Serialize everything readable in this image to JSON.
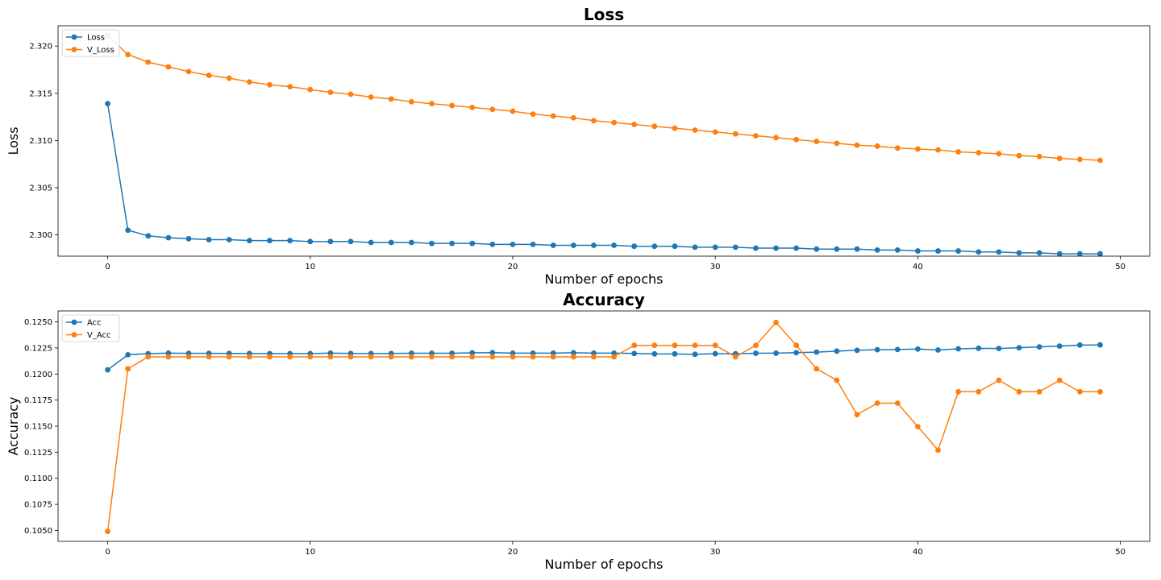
{
  "chart_data": [
    {
      "type": "line",
      "title": "Loss",
      "xlabel": "Number of epochs",
      "ylabel": "Loss",
      "xlim": [
        -2.45,
        51.45
      ],
      "ylim": [
        2.29775,
        2.32215
      ],
      "xticks": [
        0,
        10,
        20,
        30,
        40,
        50
      ],
      "yticks": [
        2.3,
        2.305,
        2.31,
        2.315,
        2.32
      ],
      "ytick_decimals": 3,
      "legend_position": "top-left",
      "x": [
        0,
        1,
        2,
        3,
        4,
        5,
        6,
        7,
        8,
        9,
        10,
        11,
        12,
        13,
        14,
        15,
        16,
        17,
        18,
        19,
        20,
        21,
        22,
        23,
        24,
        25,
        26,
        27,
        28,
        29,
        30,
        31,
        32,
        33,
        34,
        35,
        36,
        37,
        38,
        39,
        40,
        41,
        42,
        43,
        44,
        45,
        46,
        47,
        48,
        49
      ],
      "series": [
        {
          "name": "Loss",
          "color": "#1f77b4",
          "values": [
            2.3139,
            2.3005,
            2.2999,
            2.2997,
            2.2996,
            2.2995,
            2.2995,
            2.2994,
            2.2994,
            2.2994,
            2.2993,
            2.2993,
            2.2993,
            2.2992,
            2.2992,
            2.2992,
            2.2991,
            2.2991,
            2.2991,
            2.299,
            2.299,
            2.299,
            2.2989,
            2.2989,
            2.2989,
            2.2989,
            2.2988,
            2.2988,
            2.2988,
            2.2987,
            2.2987,
            2.2987,
            2.2986,
            2.2986,
            2.2986,
            2.2985,
            2.2985,
            2.2985,
            2.2984,
            2.2984,
            2.2983,
            2.2983,
            2.2983,
            2.2982,
            2.2982,
            2.2981,
            2.2981,
            2.298,
            2.298,
            2.298
          ]
        },
        {
          "name": "V_Loss",
          "color": "#ff7f0e",
          "values": [
            2.3211,
            2.3191,
            2.3183,
            2.3178,
            2.3173,
            2.3169,
            2.3166,
            2.3162,
            2.3159,
            2.3157,
            2.3154,
            2.3151,
            2.3149,
            2.3146,
            2.3144,
            2.3141,
            2.3139,
            2.3137,
            2.3135,
            2.3133,
            2.3131,
            2.3128,
            2.3126,
            2.3124,
            2.3121,
            2.3119,
            2.3117,
            2.3115,
            2.3113,
            2.3111,
            2.3109,
            2.3107,
            2.3105,
            2.3103,
            2.3101,
            2.3099,
            2.3097,
            2.3095,
            2.3094,
            2.3092,
            2.3091,
            2.309,
            2.3088,
            2.3087,
            2.3086,
            2.3084,
            2.3083,
            2.3081,
            2.308,
            2.3079
          ]
        }
      ]
    },
    {
      "type": "line",
      "title": "Accuracy",
      "xlabel": "Number of epochs",
      "ylabel": "Accuracy",
      "xlim": [
        -2.45,
        51.45
      ],
      "ylim": [
        0.10395,
        0.12605
      ],
      "xticks": [
        0,
        10,
        20,
        30,
        40,
        50
      ],
      "yticks": [
        0.105,
        0.1075,
        0.11,
        0.1125,
        0.115,
        0.1175,
        0.12,
        0.1225,
        0.125
      ],
      "ytick_decimals": 4,
      "legend_position": "top-left",
      "x": [
        0,
        1,
        2,
        3,
        4,
        5,
        6,
        7,
        8,
        9,
        10,
        11,
        12,
        13,
        14,
        15,
        16,
        17,
        18,
        19,
        20,
        21,
        22,
        23,
        24,
        25,
        26,
        27,
        28,
        29,
        30,
        31,
        32,
        33,
        34,
        35,
        36,
        37,
        38,
        39,
        40,
        41,
        42,
        43,
        44,
        45,
        46,
        47,
        48,
        49
      ],
      "series": [
        {
          "name": "Acc",
          "color": "#1f77b4",
          "values": [
            0.1204,
            0.12185,
            0.12195,
            0.122,
            0.12198,
            0.12198,
            0.12197,
            0.12197,
            0.12195,
            0.12195,
            0.12196,
            0.122,
            0.12197,
            0.12196,
            0.12197,
            0.12199,
            0.12199,
            0.12199,
            0.12203,
            0.12205,
            0.122,
            0.122,
            0.122,
            0.12204,
            0.122,
            0.122,
            0.12197,
            0.12193,
            0.12193,
            0.12189,
            0.12195,
            0.12194,
            0.12199,
            0.122,
            0.12205,
            0.1221,
            0.1222,
            0.12228,
            0.12233,
            0.12235,
            0.1224,
            0.1223,
            0.12242,
            0.12247,
            0.12245,
            0.12252,
            0.1226,
            0.12268,
            0.12278,
            0.12279
          ]
        },
        {
          "name": "V_Acc",
          "color": "#ff7f0e",
          "values": [
            0.1049,
            0.1205,
            0.12165,
            0.12165,
            0.12165,
            0.12165,
            0.12165,
            0.12165,
            0.12165,
            0.12165,
            0.12165,
            0.12165,
            0.12165,
            0.12165,
            0.12165,
            0.12165,
            0.12165,
            0.12165,
            0.12165,
            0.12165,
            0.12165,
            0.12165,
            0.12165,
            0.12165,
            0.12165,
            0.12165,
            0.12275,
            0.12275,
            0.12275,
            0.12275,
            0.12275,
            0.12165,
            0.12275,
            0.12495,
            0.12275,
            0.1205,
            0.1194,
            0.1161,
            0.1172,
            0.1172,
            0.11495,
            0.1127,
            0.1183,
            0.1183,
            0.1194,
            0.1183,
            0.1183,
            0.1194,
            0.1183,
            0.1183
          ]
        }
      ]
    }
  ]
}
